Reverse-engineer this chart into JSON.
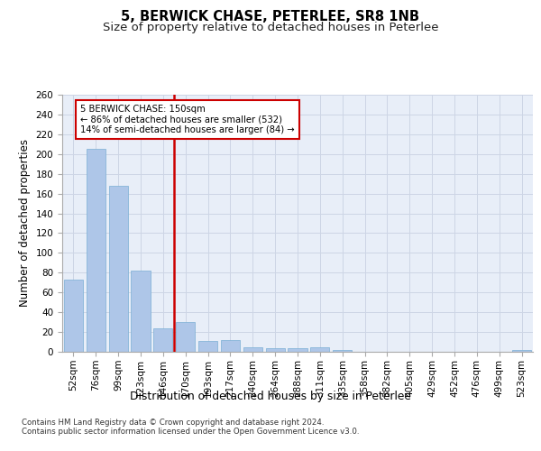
{
  "title_line1": "5, BERWICK CHASE, PETERLEE, SR8 1NB",
  "title_line2": "Size of property relative to detached houses in Peterlee",
  "xlabel": "Distribution of detached houses by size in Peterlee",
  "ylabel": "Number of detached properties",
  "categories": [
    "52sqm",
    "76sqm",
    "99sqm",
    "123sqm",
    "146sqm",
    "170sqm",
    "193sqm",
    "217sqm",
    "240sqm",
    "264sqm",
    "288sqm",
    "311sqm",
    "335sqm",
    "358sqm",
    "382sqm",
    "405sqm",
    "429sqm",
    "452sqm",
    "476sqm",
    "499sqm",
    "523sqm"
  ],
  "values": [
    73,
    205,
    168,
    82,
    24,
    30,
    11,
    12,
    5,
    4,
    4,
    5,
    2,
    0,
    0,
    0,
    0,
    0,
    0,
    0,
    2
  ],
  "bar_color": "#aec6e8",
  "bar_edge_color": "#7aafd4",
  "highlight_index": 4,
  "highlight_color": "#cc0000",
  "annotation_text": "5 BERWICK CHASE: 150sqm\n← 86% of detached houses are smaller (532)\n14% of semi-detached houses are larger (84) →",
  "annotation_box_color": "#cc0000",
  "ylim": [
    0,
    260
  ],
  "yticks": [
    0,
    20,
    40,
    60,
    80,
    100,
    120,
    140,
    160,
    180,
    200,
    220,
    240,
    260
  ],
  "grid_color": "#cdd5e5",
  "background_color": "#e8eef8",
  "footer_text": "Contains HM Land Registry data © Crown copyright and database right 2024.\nContains public sector information licensed under the Open Government Licence v3.0.",
  "title_fontsize": 10.5,
  "subtitle_fontsize": 9.5,
  "axis_label_fontsize": 8.5,
  "tick_fontsize": 7.5,
  "footer_fontsize": 6.2
}
